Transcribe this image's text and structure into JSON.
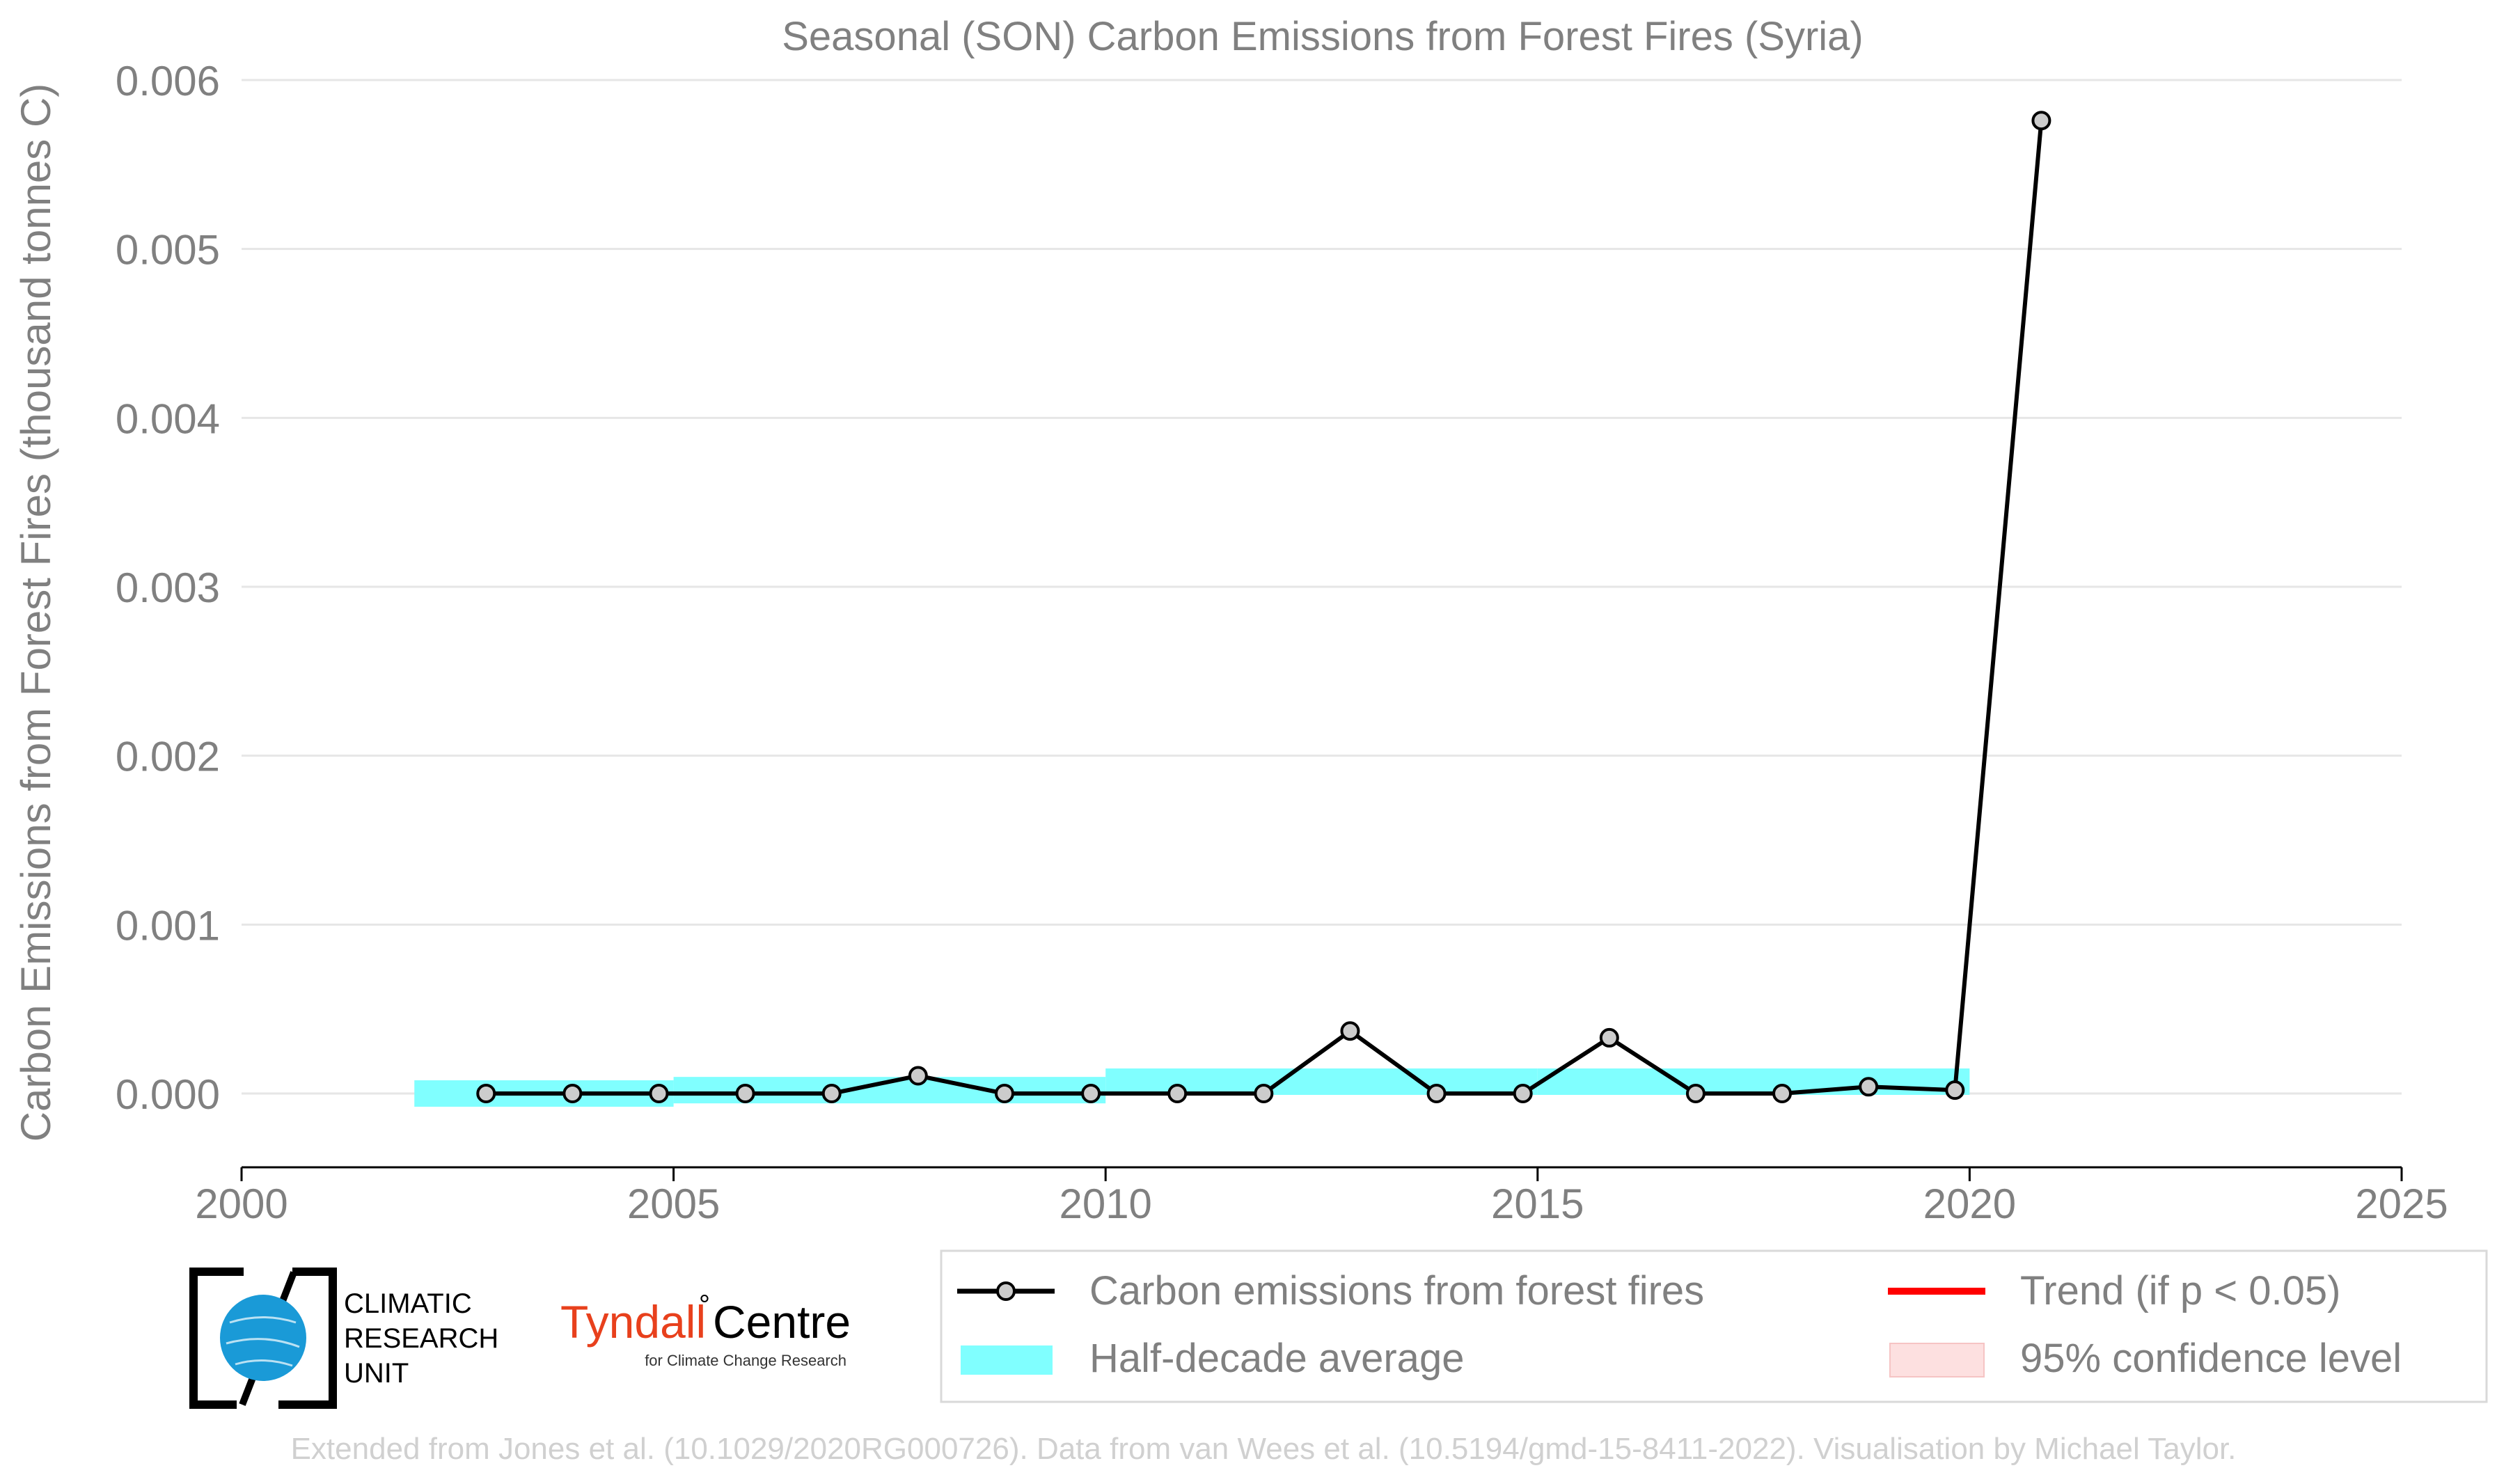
{
  "chart_data": {
    "type": "line",
    "title": "Seasonal (SON) Carbon Emissions from Forest Fires (Syria)",
    "xlabel": "",
    "ylabel": "Carbon Emissions from Forest Fires (thousand tonnes C)",
    "xlim": [
      2000,
      2025
    ],
    "ylim": [
      -0.00045,
      0.006
    ],
    "xticks": [
      2000,
      2005,
      2010,
      2015,
      2020,
      2025
    ],
    "xtick_labels": [
      "2000",
      "2005",
      "2010",
      "2015",
      "2020",
      "2025"
    ],
    "yticks": [
      0.0,
      0.001,
      0.002,
      0.003,
      0.004,
      0.005,
      0.006
    ],
    "ytick_labels": [
      "0.000",
      "0.001",
      "0.002",
      "0.003",
      "0.004",
      "0.005",
      "0.006"
    ],
    "grid": "horizontal",
    "series": [
      {
        "name": "Carbon emissions from forest fires",
        "color": "#000000",
        "x": [
          2002.83,
          2003.83,
          2004.83,
          2005.83,
          2006.83,
          2007.83,
          2008.83,
          2009.83,
          2010.83,
          2011.83,
          2012.83,
          2013.83,
          2014.83,
          2015.83,
          2016.83,
          2017.83,
          2018.83,
          2019.83,
          2020.83
        ],
        "y": [
          0.0,
          0.0,
          0.0,
          0.0,
          0.0,
          0.000105,
          0.0,
          0.0,
          0.0,
          0.0,
          0.00037,
          0.0,
          0.0,
          0.00033,
          0.0,
          0.0,
          4e-05,
          2e-05,
          0.00576
        ]
      }
    ],
    "half_decade_average": {
      "name": "Half-decade average",
      "color": "#80ffff",
      "bands": [
        {
          "x_start": 2002,
          "x_end": 2005,
          "value": 0.0
        },
        {
          "x_start": 2005,
          "x_end": 2010,
          "value": 2e-05
        },
        {
          "x_start": 2010,
          "x_end": 2015,
          "value": 7e-05
        },
        {
          "x_start": 2015,
          "x_end": 2020,
          "value": 7e-05
        }
      ]
    },
    "legend": {
      "placement": "bottom-right",
      "entries": [
        {
          "label": "Carbon emissions from forest fires",
          "kind": "line-marker",
          "color": "#000000"
        },
        {
          "label": "Trend (if p < 0.05)",
          "kind": "line",
          "color": "#ff0000"
        },
        {
          "label": "Half-decade average",
          "kind": "patch",
          "color": "#80ffff"
        },
        {
          "label": "95% confidence level",
          "kind": "patch",
          "color": "#fde0e0"
        }
      ]
    }
  },
  "logos": {
    "cru_lines": [
      "CLIMATIC",
      "RESEARCH",
      "UNIT"
    ],
    "tyndall_name": "Tyndall",
    "tyndall_degree": "°",
    "tyndall_centre": "Centre",
    "tyndall_sub": "for Climate Change Research"
  },
  "credit": "Extended from Jones et al. (10.1029/2020RG000726). Data from van Wees et al. (10.5194/gmd-15-8411-2022). Visualisation by Michael Taylor.",
  "colors": {
    "axis_text": "#808080",
    "grid": "#e6e6e6",
    "credit": "#d0d0d0",
    "cru_blue": "#1a9ad7",
    "tyndall_red": "#e8401c"
  }
}
